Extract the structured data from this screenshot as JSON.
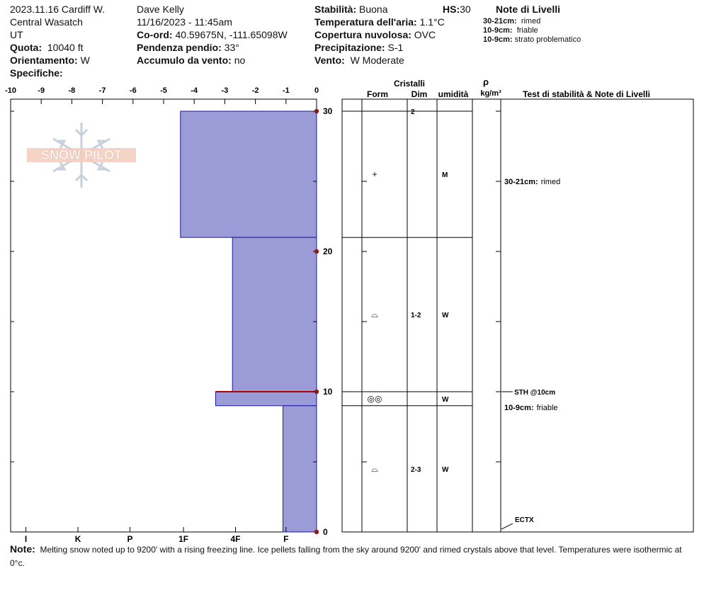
{
  "header": {
    "col1": {
      "title": "2023.11.16 Cardiff W.",
      "range": "Central Wasatch",
      "state": "UT",
      "elevation_label": "Quota:",
      "elevation": "10040 ft",
      "aspect_label": "Orientamento:",
      "aspect": "W",
      "specifics_label": "Specifiche:"
    },
    "col2": {
      "observer": "Dave Kelly",
      "datetime": "11/16/2023 - 11:45am",
      "coords_label": "Co-ord:",
      "coords": "40.59675N, -111.65098W",
      "slope_label": "Pendenza pendio:",
      "slope": "33°",
      "windload_label": "Accumulo da vento:",
      "windload": "no"
    },
    "col3": {
      "stability_label": "Stabilità:",
      "stability": "Buona",
      "hs_label": "HS:",
      "hs": "30",
      "airtemp_label": "Temperatura dell'aria:",
      "airtemp": "1.1°C",
      "cloud_label": "Copertura nuvolosa:",
      "cloud": "OVC",
      "precip_label": "Precipitazione:",
      "precip": "S-1",
      "wind_label": "Vento:",
      "wind": "W Moderate"
    },
    "layer_notes": {
      "title": "Note di Livelli",
      "items": [
        {
          "range": "30-21cm:",
          "text": "rimed"
        },
        {
          "range": "10-9cm:",
          "text": "friable"
        },
        {
          "range": "10-9cm:",
          "text": "strato problematico"
        }
      ]
    }
  },
  "logo_text": "SNOW PILOT",
  "colors": {
    "layer_fill": "#9b9bd7",
    "layer_stroke": "#1a1aa0",
    "problem_layer": "#b00000",
    "marker": "#8b1a1a"
  },
  "table_headers": {
    "crystals": "Cristalli",
    "form": "Form",
    "dim": "Dim",
    "moisture": "umidità",
    "rho": "ρ",
    "density_unit": "kg/m³",
    "notes": "Test di stabilità & Note di Livelli"
  },
  "chart_data": {
    "type": "bar",
    "title": "",
    "x_axis_top": {
      "range": [
        -10,
        0
      ],
      "ticks": [
        "-10",
        "-9",
        "-8",
        "-7",
        "-6",
        "-5",
        "-4",
        "-3",
        "-2",
        "-1",
        "0"
      ]
    },
    "x_axis_bottom": {
      "ticks": [
        "I",
        "K",
        "P",
        "1F",
        "4F",
        "F"
      ]
    },
    "y_axis": {
      "range": [
        0,
        30
      ],
      "ticks": [
        "0",
        "10",
        "20",
        "30"
      ],
      "minor_step": 5
    },
    "series": [
      {
        "layers": [
          {
            "top": 30,
            "bottom": 21,
            "hardness_value": -4.45
          },
          {
            "top": 21,
            "bottom": 10,
            "hardness_value": -2.75
          },
          {
            "top": 10,
            "bottom": 9,
            "hardness_value": -3.3,
            "problematic": true
          },
          {
            "top": 9,
            "bottom": 0,
            "hardness_value": -1.1
          }
        ]
      }
    ]
  },
  "layer_table": {
    "boundaries": [
      30,
      21,
      10,
      9,
      0
    ],
    "rows": [
      {
        "depth": 30,
        "form": "",
        "dim": "2",
        "moisture": ""
      },
      {
        "depth": 25.5,
        "form": "+",
        "dim": "",
        "moisture": "M"
      },
      {
        "depth": 15.5,
        "form": "⌓",
        "dim": "1-2",
        "moisture": "W"
      },
      {
        "depth": 9.5,
        "form": "◎◎",
        "dim": "",
        "moisture": "W"
      },
      {
        "depth": 4.5,
        "form": "⌓",
        "dim": "2-3",
        "moisture": "W"
      }
    ]
  },
  "test_notes": [
    {
      "depth": 25.0,
      "label": "30-21cm:",
      "text": "rimed",
      "arrow": false
    },
    {
      "depth": 10.0,
      "label": "STH @10cm",
      "text": "",
      "arrow": true
    },
    {
      "depth": 8.9,
      "label": "10-9cm:",
      "text": "friable",
      "arrow": false
    },
    {
      "depth": 0.5,
      "label": "ECTX",
      "text": "",
      "arrow": true
    }
  ],
  "footer": {
    "label": "Note:",
    "text": "Melting snow noted up to 9200' with a rising freezing line. Ice pellets falling from the sky around 9200' and rimed crystals above that level. Temperatures were isothermic at 0°c."
  }
}
